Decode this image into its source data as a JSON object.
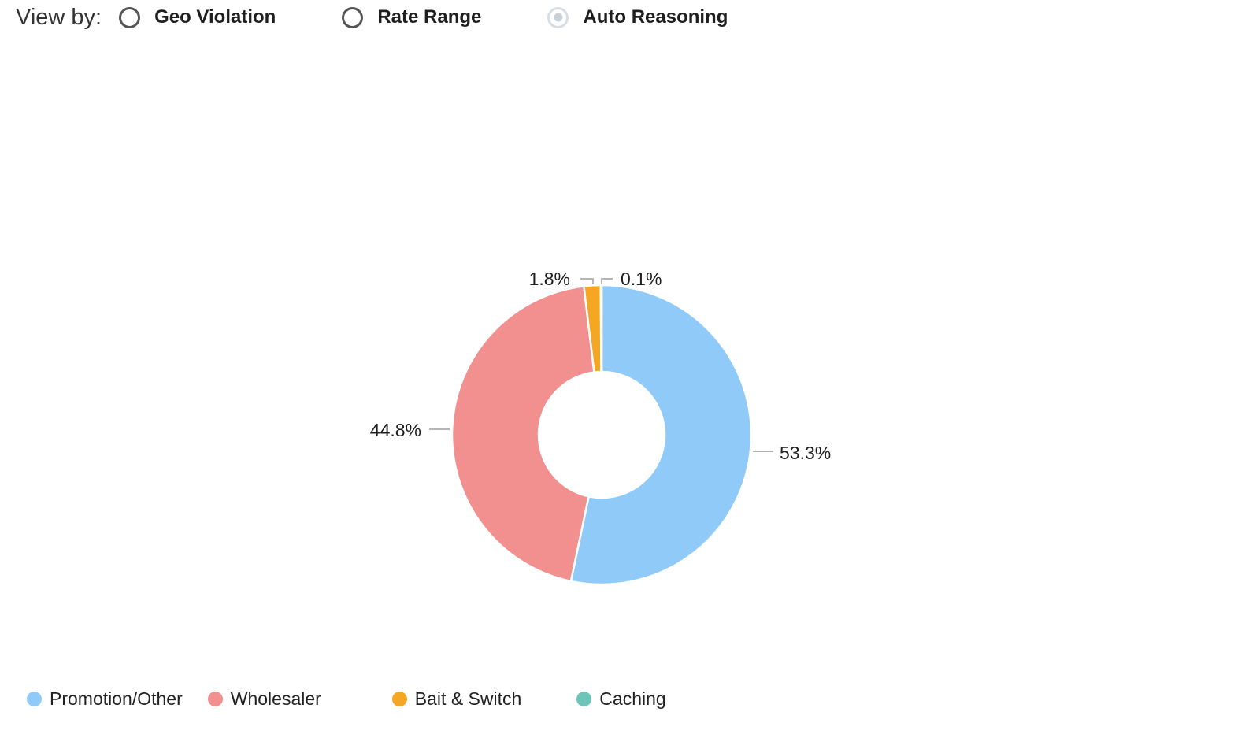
{
  "view_by": {
    "label": "View by:",
    "options": [
      {
        "label": "Geo Violation",
        "selected": false
      },
      {
        "label": "Rate Range",
        "selected": false
      },
      {
        "label": "Auto Reasoning",
        "selected": true
      }
    ]
  },
  "chart_data": {
    "type": "pie",
    "donut": true,
    "title": "",
    "legend_position": "bottom-left",
    "series": [
      {
        "name": "Promotion/Other",
        "value": 53.3,
        "label": "53.3%",
        "color": "#90caf9"
      },
      {
        "name": "Wholesaler",
        "value": 44.8,
        "label": "44.8%",
        "color": "#f28f8f"
      },
      {
        "name": "Bait & Switch",
        "value": 1.8,
        "label": "1.8%",
        "color": "#f5a623"
      },
      {
        "name": "Caching",
        "value": 0.1,
        "label": "0.1%",
        "color": "#6cc5b8"
      }
    ]
  }
}
